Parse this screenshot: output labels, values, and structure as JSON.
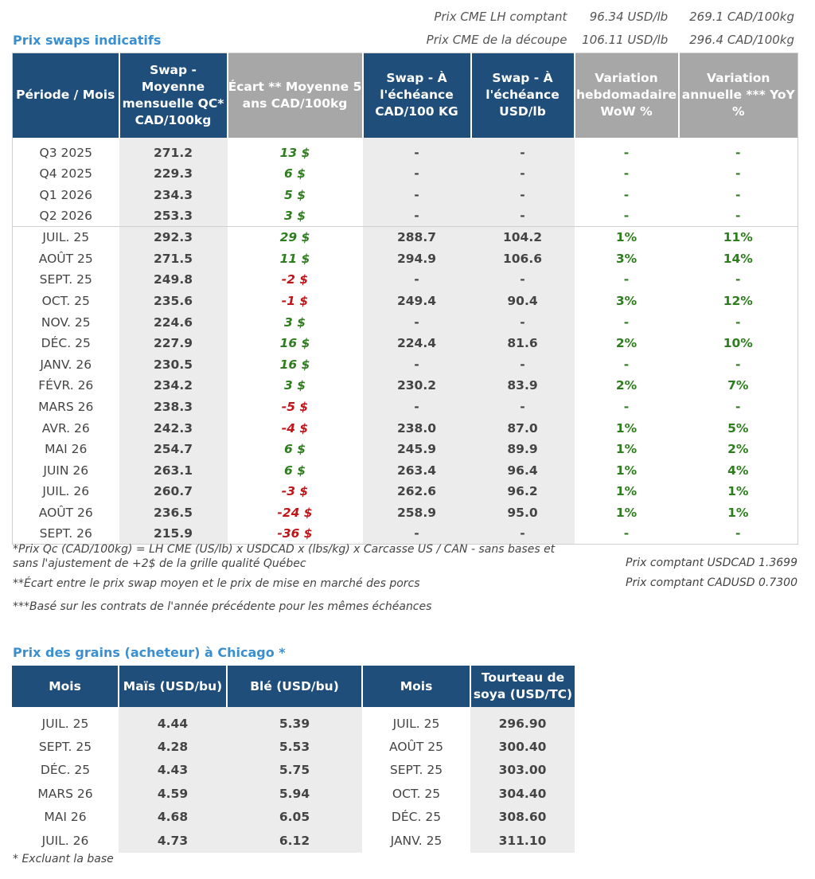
{
  "header_prices": [
    {
      "label": "Prix CME LH comptant",
      "usd": "96.34 USD/lb",
      "cad": "269.1 CAD/100kg"
    },
    {
      "label": "Prix CME de la découpe",
      "usd": "106.11 USD/lb",
      "cad": "296.4 CAD/100kg"
    }
  ],
  "swaps": {
    "title": "Prix swaps indicatifs",
    "columns": [
      "Période / Mois",
      "Swap - Moyenne mensuelle QC* CAD/100kg",
      "Écart ** Moyenne 5 ans CAD/100kg",
      "Swap - À l'échéance CAD/100 KG",
      "Swap - À l'échéance USD/lb",
      "Variation hebdomadaire WoW %",
      "Variation annuelle *** YoY %"
    ],
    "quarters": [
      {
        "period": "Q3 2025",
        "swap": "271.2",
        "ecart": "13 $",
        "cad": "-",
        "usd": "-",
        "wow": "-",
        "yoy": "-"
      },
      {
        "period": "Q4 2025",
        "swap": "229.3",
        "ecart": "6 $",
        "cad": "-",
        "usd": "-",
        "wow": "-",
        "yoy": "-"
      },
      {
        "period": "Q1 2026",
        "swap": "234.3",
        "ecart": "5 $",
        "cad": "-",
        "usd": "-",
        "wow": "-",
        "yoy": "-"
      },
      {
        "period": "Q2 2026",
        "swap": "253.3",
        "ecart": "3 $",
        "cad": "-",
        "usd": "-",
        "wow": "-",
        "yoy": "-"
      }
    ],
    "months": [
      {
        "period": "JUIL. 25",
        "swap": "292.3",
        "ecart": "29 $",
        "cad": "288.7",
        "usd": "104.2",
        "wow": "1%",
        "yoy": "11%"
      },
      {
        "period": "AOÛT 25",
        "swap": "271.5",
        "ecart": "11 $",
        "cad": "294.9",
        "usd": "106.6",
        "wow": "3%",
        "yoy": "14%"
      },
      {
        "period": "SEPT. 25",
        "swap": "249.8",
        "ecart": "-2 $",
        "cad": "-",
        "usd": "-",
        "wow": "-",
        "yoy": "-"
      },
      {
        "period": "OCT. 25",
        "swap": "235.6",
        "ecart": "-1 $",
        "cad": "249.4",
        "usd": "90.4",
        "wow": "3%",
        "yoy": "12%"
      },
      {
        "period": "NOV. 25",
        "swap": "224.6",
        "ecart": "3 $",
        "cad": "-",
        "usd": "-",
        "wow": "-",
        "yoy": "-"
      },
      {
        "period": "DÉC. 25",
        "swap": "227.9",
        "ecart": "16 $",
        "cad": "224.4",
        "usd": "81.6",
        "wow": "2%",
        "yoy": "10%"
      },
      {
        "period": "JANV. 26",
        "swap": "230.5",
        "ecart": "16 $",
        "cad": "-",
        "usd": "-",
        "wow": "-",
        "yoy": "-"
      },
      {
        "period": "FÉVR. 26",
        "swap": "234.2",
        "ecart": "3 $",
        "cad": "230.2",
        "usd": "83.9",
        "wow": "2%",
        "yoy": "7%"
      },
      {
        "period": "MARS 26",
        "swap": "238.3",
        "ecart": "-5 $",
        "cad": "-",
        "usd": "-",
        "wow": "-",
        "yoy": "-"
      },
      {
        "period": "AVR. 26",
        "swap": "242.3",
        "ecart": "-4 $",
        "cad": "238.0",
        "usd": "87.0",
        "wow": "1%",
        "yoy": "5%"
      },
      {
        "period": "MAI 26",
        "swap": "254.7",
        "ecart": "6 $",
        "cad": "245.9",
        "usd": "89.9",
        "wow": "1%",
        "yoy": "2%"
      },
      {
        "period": "JUIN 26",
        "swap": "263.1",
        "ecart": "6 $",
        "cad": "263.4",
        "usd": "96.4",
        "wow": "1%",
        "yoy": "4%"
      },
      {
        "period": "JUIL. 26",
        "swap": "260.7",
        "ecart": "-3 $",
        "cad": "262.6",
        "usd": "96.2",
        "wow": "1%",
        "yoy": "1%"
      },
      {
        "period": "AOÛT 26",
        "swap": "236.5",
        "ecart": "-24 $",
        "cad": "258.9",
        "usd": "95.0",
        "wow": "1%",
        "yoy": "1%"
      },
      {
        "period": "SEPT. 26",
        "swap": "215.9",
        "ecart": "-36 $",
        "cad": "-",
        "usd": "-",
        "wow": "-",
        "yoy": "-"
      }
    ]
  },
  "notes": {
    "note1_line1": "*Prix Qc (CAD/100kg) = LH CME (US/lb) x USDCAD x (lbs/kg) x Carcasse US / CAN - sans bases et",
    "note1_line2": "sans l'ajustement de +2$ de la grille qualité Québec",
    "note2": "**Écart entre le prix swap moyen et le prix de mise en marché des porcs",
    "note3": "***Basé sur les contrats de l'année précédente pour les mêmes échéances",
    "usdcad": "Prix comptant USDCAD 1.3699",
    "cadusd": "Prix comptant CADUSD 0.7300"
  },
  "grains": {
    "title": "Prix des grains (acheteur) à Chicago *",
    "columns": [
      "Mois",
      "Maïs (USD/bu)",
      "Blé (USD/bu)",
      "Mois",
      "Tourteau de soya (USD/TC)"
    ],
    "rows": [
      {
        "month": "JUIL. 25",
        "corn": "4.44",
        "wheat": "5.39",
        "month2": "JUIL. 25",
        "soy": "296.90"
      },
      {
        "month": "SEPT. 25",
        "corn": "4.28",
        "wheat": "5.53",
        "month2": "AOÛT 25",
        "soy": "300.40"
      },
      {
        "month": "DÉC. 25",
        "corn": "4.43",
        "wheat": "5.75",
        "month2": "SEPT. 25",
        "soy": "303.00"
      },
      {
        "month": "MARS 26",
        "corn": "4.59",
        "wheat": "5.94",
        "month2": "OCT. 25",
        "soy": "304.40"
      },
      {
        "month": "MAI 26",
        "corn": "4.68",
        "wheat": "6.05",
        "month2": "DÉC. 25",
        "soy": "308.60"
      },
      {
        "month": "JUIL. 26",
        "corn": "4.73",
        "wheat": "6.12",
        "month2": "JANV. 25",
        "soy": "311.10"
      }
    ],
    "footnote": "* Excluant la base"
  },
  "colors": {
    "header_blue": "#1f4e7a",
    "header_gray": "#a7a7a7",
    "title_blue": "#3a8fd0",
    "positive": "#2e7d1e",
    "negative": "#c0161a"
  }
}
